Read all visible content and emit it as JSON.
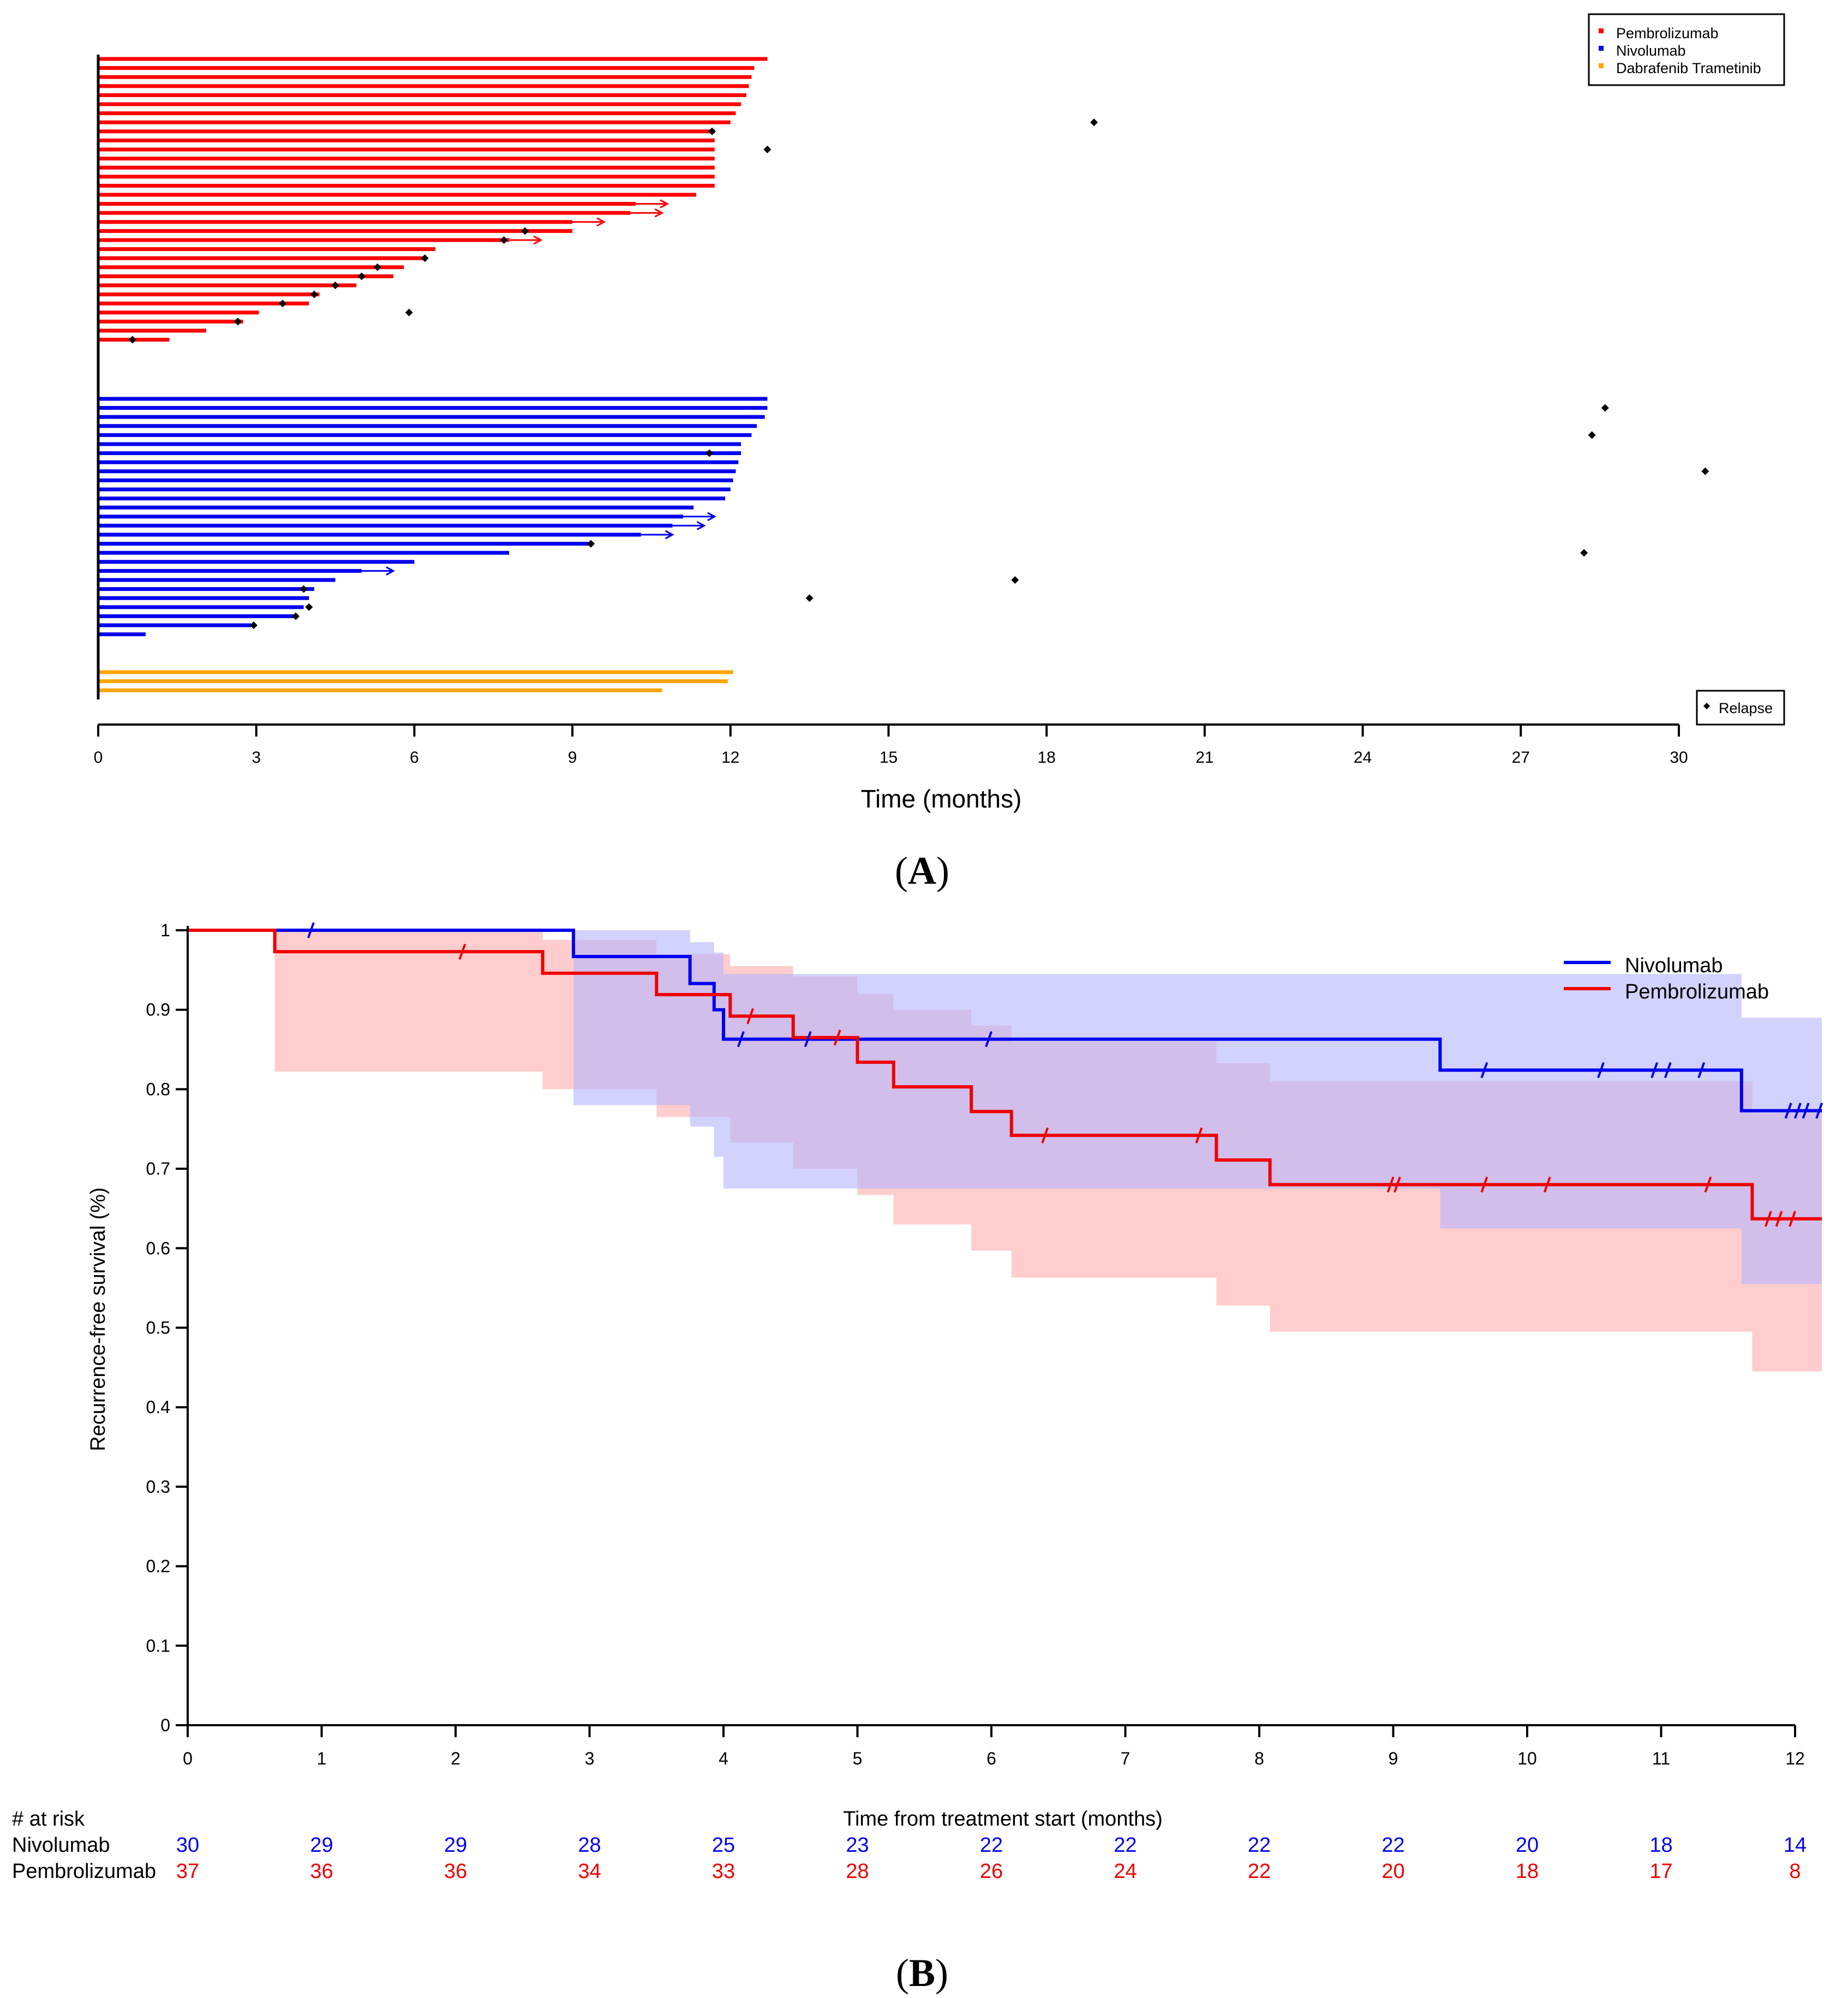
{
  "chart_data": [
    {
      "type": "swimmer",
      "panel_label": "A",
      "xlabel": "Time (months)",
      "xlim": [
        0,
        30
      ],
      "xticks": [
        0,
        3,
        6,
        9,
        12,
        15,
        18,
        21,
        24,
        27,
        30
      ],
      "legend": {
        "position": "top-right",
        "entries": [
          {
            "name": "Pembrolizumab",
            "color": "#ff0000"
          },
          {
            "name": "Nivolumab",
            "color": "#0000ee"
          },
          {
            "name": "Dabrafenib Trametinib",
            "color": "#ffa500"
          }
        ]
      },
      "relapse_legend": {
        "position": "bottom-right",
        "label": "Relapse",
        "marker": "diamond"
      },
      "groups": [
        {
          "name": "Pembrolizumab",
          "color": "#ff0000",
          "bars": [
            {
              "end": 12.7
            },
            {
              "end": 12.45
            },
            {
              "end": 12.4
            },
            {
              "end": 12.35
            },
            {
              "end": 12.3
            },
            {
              "end": 12.2
            },
            {
              "end": 12.1
            },
            {
              "end": 12.0,
              "relapse": 18.9
            },
            {
              "end": 11.7,
              "relapse": 11.65
            },
            {
              "end": 11.7
            },
            {
              "end": 11.7,
              "relapse": 12.7
            },
            {
              "end": 11.7
            },
            {
              "end": 11.7
            },
            {
              "end": 11.7
            },
            {
              "end": 11.7
            },
            {
              "end": 11.35
            },
            {
              "end": 10.2,
              "ongoing": true
            },
            {
              "end": 10.1,
              "ongoing": true
            },
            {
              "end": 9.0,
              "ongoing": true
            },
            {
              "end": 9.0,
              "relapse": 8.1
            },
            {
              "end": 7.8,
              "ongoing": true,
              "relapse": 7.7
            },
            {
              "end": 6.4
            },
            {
              "end": 6.2,
              "relapse": 6.2
            },
            {
              "end": 5.8,
              "relapse": 5.3
            },
            {
              "end": 5.6,
              "relapse": 5.0
            },
            {
              "end": 4.9,
              "relapse": 4.5
            },
            {
              "end": 4.2,
              "relapse": 4.1
            },
            {
              "end": 4.0,
              "relapse": 3.5
            },
            {
              "end": 3.05,
              "relapse": 5.9
            },
            {
              "end": 2.75,
              "relapse": 2.65
            },
            {
              "end": 2.05
            },
            {
              "end": 1.35,
              "relapse": 0.65
            }
          ]
        },
        {
          "name": "Nivolumab",
          "color": "#0000ee",
          "bars": [
            {
              "end": 12.7
            },
            {
              "end": 12.7,
              "relapse": 28.6
            },
            {
              "end": 12.65
            },
            {
              "end": 12.5
            },
            {
              "end": 12.4,
              "relapse": 28.35
            },
            {
              "end": 12.2
            },
            {
              "end": 12.2,
              "relapse": 11.6
            },
            {
              "end": 12.15
            },
            {
              "end": 12.1,
              "relapse": 30.5
            },
            {
              "end": 12.05
            },
            {
              "end": 12.0
            },
            {
              "end": 11.9
            },
            {
              "end": 11.3
            },
            {
              "end": 11.1,
              "ongoing": true
            },
            {
              "end": 10.9,
              "ongoing": true
            },
            {
              "end": 10.3,
              "ongoing": true
            },
            {
              "end": 9.4,
              "relapse": 9.35
            },
            {
              "end": 7.8,
              "relapse": 28.2
            },
            {
              "end": 6.0
            },
            {
              "end": 5.0,
              "ongoing": true
            },
            {
              "end": 4.5,
              "relapse": 17.4
            },
            {
              "end": 4.1,
              "relapse": 3.9
            },
            {
              "end": 4.0,
              "relapse": 13.5
            },
            {
              "end": 3.9,
              "relapse": 4.0
            },
            {
              "end": 3.75,
              "relapse": 3.75
            },
            {
              "end": 2.9,
              "relapse": 2.95
            },
            {
              "end": 0.9
            }
          ]
        },
        {
          "name": "Dabrafenib Trametinib",
          "color": "#ffa500",
          "bars": [
            {
              "end": 12.05
            },
            {
              "end": 11.95
            },
            {
              "end": 10.7
            }
          ]
        }
      ]
    },
    {
      "type": "line",
      "subtype": "kaplan-meier step",
      "panel_label": "B",
      "xlabel": "Time from treatment start (months)",
      "ylabel": "Recurrence-free survival (%)",
      "xlim": [
        0,
        12
      ],
      "ylim": [
        0,
        1
      ],
      "xticks": [
        0,
        1,
        2,
        3,
        4,
        5,
        6,
        7,
        8,
        9,
        10,
        11,
        12
      ],
      "yticks": [
        0,
        0.1,
        0.2,
        0.3,
        0.4,
        0.5,
        0.6,
        0.7,
        0.8,
        0.9,
        1
      ],
      "ytick_labels": [
        "0",
        "0.1",
        "0.2",
        "0.3",
        "0.4",
        "0.5",
        "0.6",
        "0.7",
        "0.8",
        "0.9",
        "1"
      ],
      "legend": {
        "position": "top-right"
      },
      "series": [
        {
          "name": "Nivolumab",
          "color": "#0000ee",
          "ci_color": "#b4b4ff",
          "x": [
            0,
            2.88,
            3.75,
            3.93,
            4.0,
            9.35,
            11.6,
            12.2
          ],
          "y": [
            1.0,
            0.967,
            0.933,
            0.9,
            0.863,
            0.824,
            0.773,
            0.773
          ],
          "ci_lower": [
            1.0,
            0.78,
            0.753,
            0.715,
            0.675,
            0.625,
            0.555,
            0.555
          ],
          "ci_upper": [
            1.0,
            1.0,
            0.985,
            0.972,
            0.945,
            0.945,
            0.89,
            0.89
          ],
          "censor_x": [
            0.92,
            4.13,
            4.63,
            5.98,
            9.68,
            10.55,
            10.95,
            11.05,
            11.3,
            11.95,
            12.02,
            12.08,
            12.18
          ],
          "at_risk": [
            30,
            29,
            29,
            28,
            25,
            23,
            22,
            22,
            22,
            22,
            20,
            18,
            14
          ]
        },
        {
          "name": "Pembrolizumab",
          "color": "#ee0000",
          "ci_color": "#ffbcbc",
          "x": [
            0,
            0.65,
            2.65,
            3.5,
            4.05,
            4.52,
            5.0,
            5.27,
            5.85,
            6.15,
            7.68,
            8.08,
            11.68,
            12.2
          ],
          "y": [
            1.0,
            0.973,
            0.946,
            0.919,
            0.892,
            0.865,
            0.834,
            0.803,
            0.772,
            0.742,
            0.711,
            0.68,
            0.637,
            0.637
          ],
          "ci_lower": [
            1.0,
            0.822,
            0.8,
            0.765,
            0.733,
            0.7,
            0.667,
            0.63,
            0.597,
            0.563,
            0.528,
            0.495,
            0.445,
            0.445
          ],
          "ci_upper": [
            1.0,
            1.0,
            0.988,
            0.97,
            0.955,
            0.942,
            0.92,
            0.9,
            0.88,
            0.86,
            0.833,
            0.81,
            0.77,
            0.77
          ],
          "censor_x": [
            2.05,
            4.2,
            4.85,
            6.4,
            7.55,
            8.98,
            9.03,
            9.68,
            10.15,
            11.35,
            11.8,
            11.88,
            11.98
          ],
          "at_risk": [
            37,
            36,
            36,
            34,
            33,
            28,
            26,
            24,
            22,
            20,
            18,
            17,
            8
          ]
        }
      ],
      "at_risk_title": "# at risk"
    }
  ]
}
